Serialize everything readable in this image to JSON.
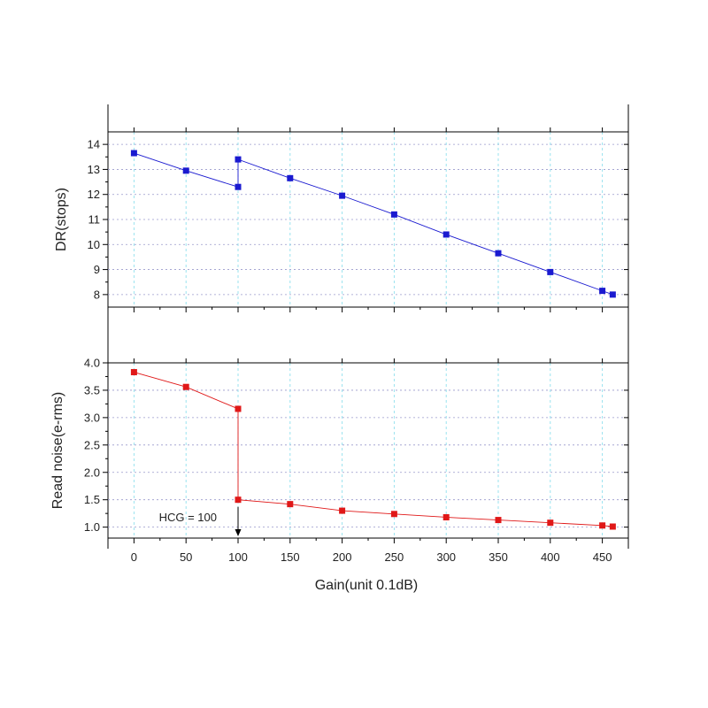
{
  "chart_data": {
    "type": "line",
    "xlabel": "Gain(unit 0.1dB)",
    "xlim": [
      -25,
      475
    ],
    "x_ticks": [
      0,
      50,
      100,
      150,
      200,
      250,
      300,
      350,
      400,
      450
    ],
    "x_tick_labels": [
      "0",
      "50",
      "100",
      "150",
      "200",
      "250",
      "300",
      "350",
      "400",
      "450"
    ],
    "grid": true,
    "panels": [
      {
        "ylabel": "DR(stops)",
        "ylim": [
          7.5,
          14.5
        ],
        "y_ticks": [
          8,
          9,
          10,
          11,
          12,
          13,
          14
        ],
        "y_tick_labels": [
          "8",
          "9",
          "10",
          "11",
          "12",
          "13",
          "14"
        ],
        "color": "#1a1ad0",
        "series": [
          {
            "x": [
              0,
              50,
              100,
              100,
              150,
              200,
              250,
              300,
              350,
              400,
              450,
              460
            ],
            "y": [
              13.65,
              12.95,
              12.3,
              13.4,
              12.65,
              11.95,
              11.2,
              10.4,
              9.65,
              8.9,
              8.15,
              8.0
            ]
          }
        ]
      },
      {
        "ylabel": "Read noise(e-rms)",
        "ylim": [
          0.8,
          4.0
        ],
        "y_ticks": [
          1.0,
          1.5,
          2.0,
          2.5,
          3.0,
          3.5,
          4.0
        ],
        "y_tick_labels": [
          "1.0",
          "1.5",
          "2.0",
          "2.5",
          "3.0",
          "3.5",
          "4.0"
        ],
        "color": "#e01818",
        "series": [
          {
            "x": [
              0,
              50,
              100,
              100,
              150,
              200,
              250,
              300,
              350,
              400,
              450,
              460
            ],
            "y": [
              3.83,
              3.56,
              3.16,
              1.5,
              1.42,
              1.3,
              1.24,
              1.18,
              1.13,
              1.08,
              1.03,
              1.01
            ]
          }
        ],
        "annotation": {
          "text": "HCG = 100",
          "x": 100
        }
      }
    ]
  }
}
